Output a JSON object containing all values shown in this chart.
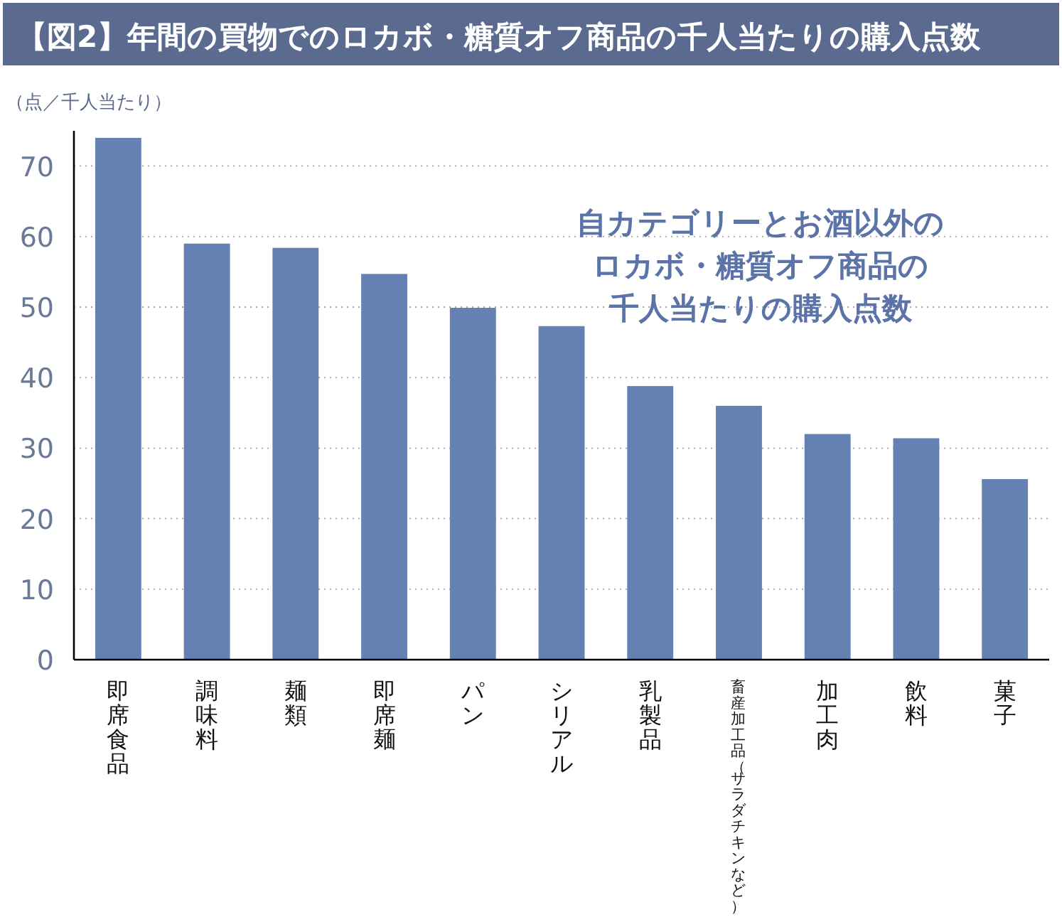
{
  "chart_data": {
    "type": "bar",
    "title": "【図2】年間の買物でのロカボ・糖質オフ商品の千人当たりの購入点数",
    "ylabel": "（点／千人当たり）",
    "categories": [
      "即席食品",
      "調味料",
      "麺類",
      "即席麺",
      "パン",
      "シリアル",
      "乳製品",
      "畜産加工品（サラダチキンなど）",
      "加工肉",
      "飲料",
      "菓子"
    ],
    "values": [
      74.0,
      59.0,
      58.4,
      54.7,
      49.9,
      47.3,
      38.8,
      36.0,
      32.0,
      31.4,
      25.6
    ],
    "color": "#6580b3",
    "ylim": [
      0,
      75
    ],
    "yticks": [
      0,
      10,
      20,
      30,
      40,
      50,
      60,
      70
    ],
    "grid": "y",
    "annotations": [
      "自カテゴリーとお酒以外の",
      "ロカボ・糖質オフ商品の",
      "千人当たりの購入点数"
    ]
  }
}
